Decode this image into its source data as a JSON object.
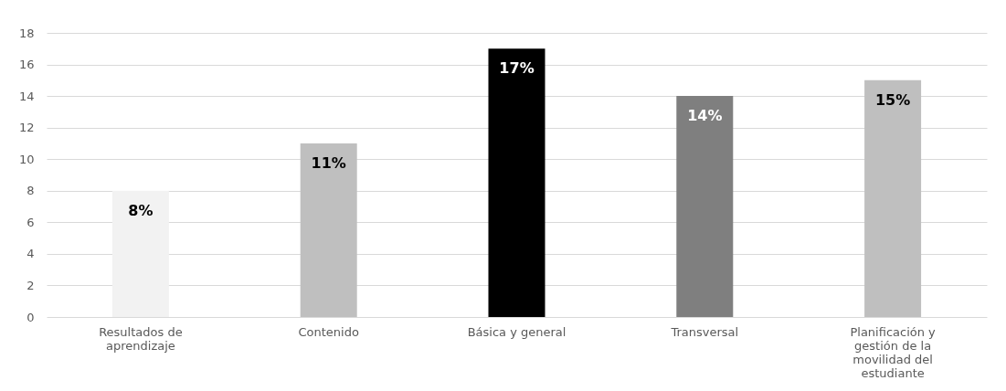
{
  "chart_data": {
    "type": "bar",
    "categories": [
      "Resultados de aprendizaje",
      "Contenido",
      "Básica y general",
      "Transversal",
      "Planificación y gestión de la movilidad del estudiante"
    ],
    "values": [
      8,
      11,
      17,
      14,
      15
    ],
    "colors": [
      "#f2f2f2",
      "#bfbfbf",
      "#000000",
      "#7f7f7f",
      "#bfbfbf"
    ],
    "value_labels": [
      "8%",
      "11%",
      "17%",
      "14%",
      "15%"
    ],
    "ylim": [
      0,
      18
    ],
    "yticks": [
      0,
      2,
      4,
      6,
      8,
      10,
      12,
      14,
      16,
      18
    ],
    "grid": "y"
  }
}
